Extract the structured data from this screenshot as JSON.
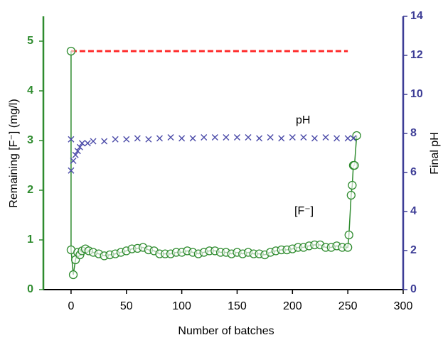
{
  "chart_data": {
    "type": "line",
    "xlabel": "Number of batches",
    "ylabel": "Remaining [F⁻] (mg/l)",
    "y2label": "Final pH",
    "xlim": [
      -25,
      300
    ],
    "xticks": [
      0,
      50,
      100,
      150,
      200,
      250,
      300
    ],
    "ylim": [
      0,
      5.5
    ],
    "yticks": [
      0,
      1,
      2,
      3,
      4,
      5
    ],
    "y2lim": [
      0,
      14
    ],
    "y2ticks": [
      0,
      2,
      4,
      6,
      8,
      10,
      12,
      14
    ],
    "axis_colors": {
      "x": "#000000",
      "y": "#2e8b2e",
      "y2": "#3d3d96"
    },
    "annotations": [
      "pH",
      "[F⁻]"
    ],
    "series": [
      {
        "color": "#ff2a2a",
        "marker": "none",
        "line_style": "dashed",
        "x": [
          0,
          250
        ],
        "values": [
          4.8,
          4.8
        ]
      },
      {
        "color": "#2e8b2e",
        "marker": "circle-open",
        "line_style": "solid",
        "x": [
          0,
          0,
          2,
          4,
          6,
          8,
          10,
          13,
          16,
          20,
          25,
          30,
          35,
          40,
          45,
          50,
          55,
          60,
          65,
          70,
          75,
          80,
          85,
          90,
          95,
          100,
          105,
          110,
          115,
          120,
          125,
          130,
          135,
          140,
          145,
          150,
          155,
          160,
          165,
          170,
          175,
          180,
          185,
          190,
          195,
          200,
          205,
          210,
          215,
          220,
          225,
          230,
          235,
          240,
          245,
          250,
          251,
          253,
          254,
          255,
          256,
          258
        ],
        "values": [
          4.8,
          0.8,
          0.3,
          0.6,
          0.75,
          0.7,
          0.78,
          0.82,
          0.78,
          0.75,
          0.72,
          0.68,
          0.7,
          0.72,
          0.75,
          0.78,
          0.82,
          0.83,
          0.85,
          0.8,
          0.78,
          0.72,
          0.72,
          0.72,
          0.75,
          0.75,
          0.78,
          0.75,
          0.72,
          0.75,
          0.78,
          0.78,
          0.75,
          0.75,
          0.72,
          0.75,
          0.72,
          0.75,
          0.72,
          0.72,
          0.7,
          0.75,
          0.78,
          0.8,
          0.8,
          0.82,
          0.85,
          0.85,
          0.88,
          0.9,
          0.9,
          0.85,
          0.85,
          0.88,
          0.85,
          0.85,
          1.1,
          1.9,
          2.1,
          2.5,
          2.5,
          3.1
        ]
      },
      {
        "color": "#4a4aa8",
        "marker": "x",
        "line_style": "none",
        "axis": "y2",
        "x": [
          0,
          0,
          2,
          4,
          6,
          8,
          10,
          15,
          20,
          30,
          40,
          50,
          60,
          70,
          80,
          90,
          100,
          110,
          120,
          130,
          140,
          150,
          160,
          170,
          180,
          190,
          200,
          210,
          220,
          230,
          240,
          250,
          255
        ],
        "values": [
          7.7,
          6.1,
          6.6,
          6.9,
          7.1,
          7.3,
          7.5,
          7.5,
          7.6,
          7.6,
          7.7,
          7.7,
          7.75,
          7.7,
          7.75,
          7.8,
          7.75,
          7.75,
          7.8,
          7.8,
          7.8,
          7.8,
          7.8,
          7.75,
          7.8,
          7.75,
          7.8,
          7.8,
          7.75,
          7.8,
          7.75,
          7.75,
          7.75
        ]
      }
    ]
  }
}
